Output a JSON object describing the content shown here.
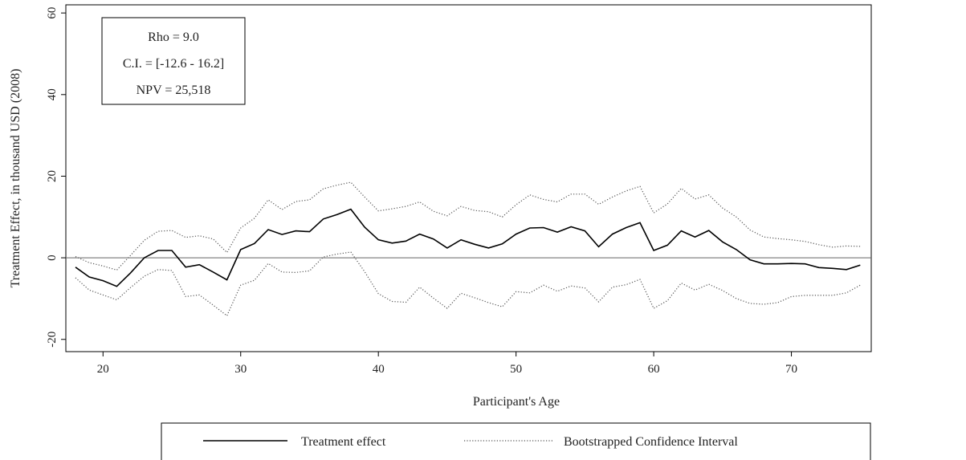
{
  "chart_data": {
    "type": "line",
    "title": "",
    "xlabel": "Participant's Age",
    "ylabel": "Treatment Effect, in thousand USD (2008)",
    "xlim": [
      17.3,
      75.8
    ],
    "ylim": [
      -23,
      62
    ],
    "xticks": [
      20,
      30,
      40,
      50,
      60,
      70
    ],
    "yticks": [
      -20,
      0,
      20,
      40,
      60
    ],
    "reference_line_y": 0,
    "annotation": [
      "Rho = 9.0",
      "C.I. = [-12.6 - 16.2]",
      "NPV = 25,518"
    ],
    "legend_position": "bottom",
    "grid": false,
    "x": [
      18,
      19,
      20,
      21,
      22,
      23,
      24,
      25,
      26,
      27,
      28,
      29,
      30,
      31,
      32,
      33,
      34,
      35,
      36,
      37,
      38,
      39,
      40,
      41,
      42,
      43,
      44,
      45,
      46,
      47,
      48,
      49,
      50,
      51,
      52,
      53,
      54,
      55,
      56,
      57,
      58,
      59,
      60,
      61,
      62,
      63,
      64,
      65,
      66,
      67,
      68,
      69,
      70,
      71,
      72,
      73,
      74,
      75
    ],
    "series": [
      {
        "name": "Treatment effect",
        "style": "solid",
        "color": "#000000",
        "values": [
          -2.3,
          -4.7,
          -5.6,
          -7.0,
          -3.7,
          0.0,
          1.8,
          1.8,
          -2.3,
          -1.7,
          -3.5,
          -5.4,
          2.0,
          3.5,
          6.9,
          5.7,
          6.6,
          6.4,
          9.5,
          10.6,
          11.9,
          7.5,
          4.4,
          3.6,
          4.1,
          5.8,
          4.6,
          2.4,
          4.4,
          3.3,
          2.4,
          3.4,
          5.8,
          7.3,
          7.4,
          6.3,
          7.6,
          6.6,
          2.7,
          5.8,
          7.4,
          8.6,
          1.8,
          3.1,
          6.6,
          5.1,
          6.7,
          3.9,
          2.0,
          -0.5,
          -1.5,
          -1.5,
          -1.4,
          -1.5,
          -2.4,
          -2.6,
          -2.9,
          -1.8
        ]
      },
      {
        "name": "Bootstrapped Confidence Interval",
        "style": "dotted",
        "color": "#555555",
        "upper": [
          0.3,
          -1.2,
          -2.0,
          -3.0,
          0.6,
          4.3,
          6.5,
          6.7,
          5.0,
          5.4,
          4.6,
          1.3,
          7.3,
          9.7,
          14.2,
          11.8,
          13.8,
          14.2,
          16.9,
          17.8,
          18.5,
          14.9,
          11.5,
          12.0,
          12.6,
          13.7,
          11.4,
          10.3,
          12.6,
          11.6,
          11.3,
          10.0,
          13.0,
          15.4,
          14.3,
          13.7,
          15.6,
          15.6,
          13.1,
          14.9,
          16.4,
          17.5,
          11.0,
          13.2,
          17.0,
          14.4,
          15.4,
          12.2,
          10.0,
          6.8,
          5.1,
          4.7,
          4.4,
          4.0,
          3.2,
          2.6,
          2.9,
          2.8
        ],
        "lower": [
          -4.9,
          -7.9,
          -9.1,
          -10.3,
          -7.3,
          -4.5,
          -2.9,
          -3.1,
          -9.5,
          -9.1,
          -11.6,
          -14.2,
          -6.7,
          -5.5,
          -1.4,
          -3.5,
          -3.6,
          -3.2,
          0.2,
          0.9,
          1.4,
          -3.4,
          -8.8,
          -10.7,
          -10.9,
          -7.2,
          -9.9,
          -12.4,
          -8.7,
          -9.8,
          -11.0,
          -12.0,
          -8.3,
          -8.6,
          -6.7,
          -8.2,
          -6.9,
          -7.4,
          -10.8,
          -7.2,
          -6.6,
          -5.3,
          -12.4,
          -10.5,
          -6.2,
          -7.9,
          -6.5,
          -8.0,
          -10.0,
          -11.2,
          -11.4,
          -11.0,
          -9.5,
          -9.2,
          -9.2,
          -9.2,
          -8.6,
          -6.7
        ]
      }
    ]
  }
}
